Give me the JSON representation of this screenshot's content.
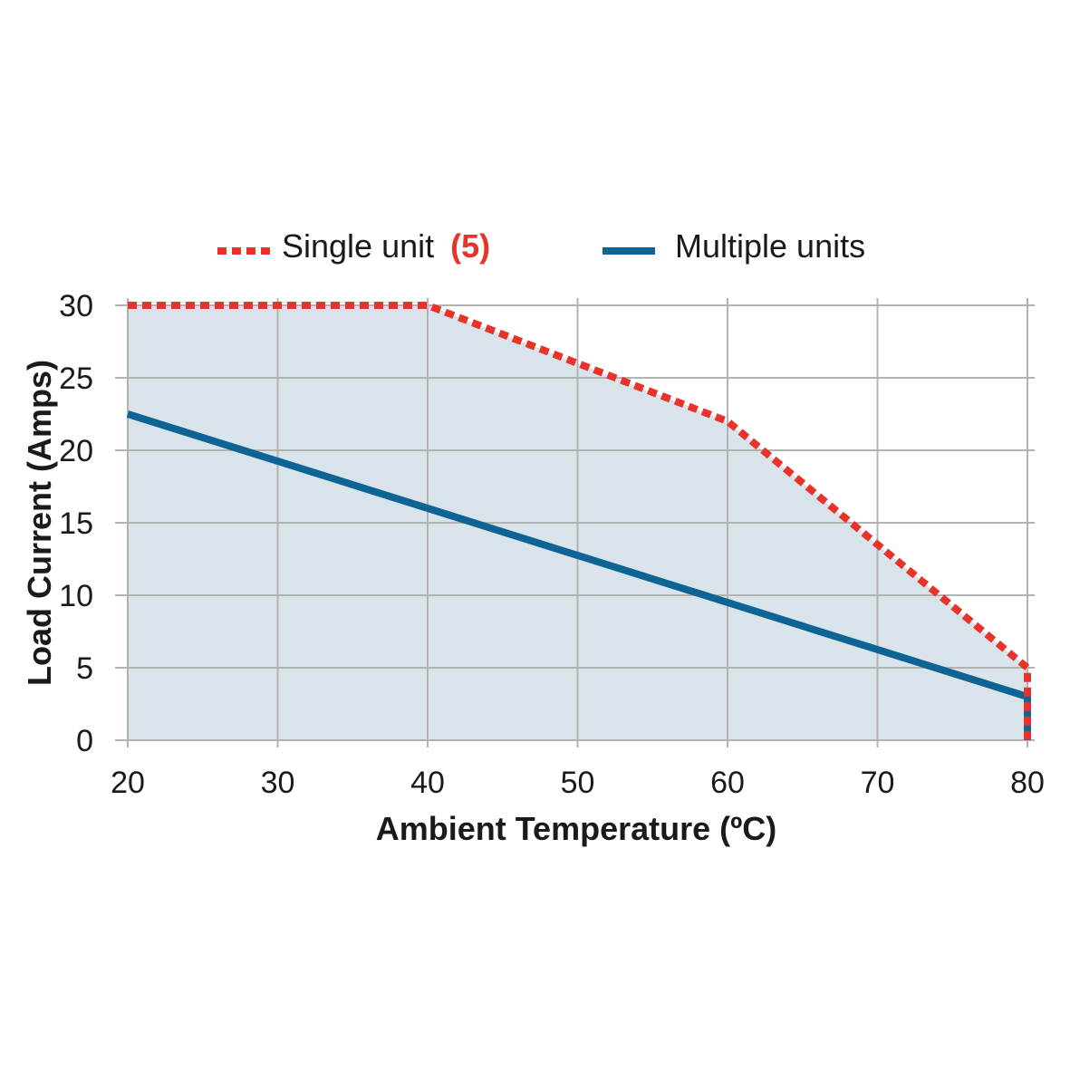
{
  "chart_data": {
    "type": "line",
    "title": "",
    "xlabel": "Ambient Temperature (ºC)",
    "ylabel": "Load Current (Amps)",
    "xlim": [
      20,
      80
    ],
    "ylim": [
      0,
      30
    ],
    "xticks": [
      20,
      30,
      40,
      50,
      60,
      70,
      80
    ],
    "yticks": [
      0,
      5,
      10,
      15,
      20,
      25,
      30
    ],
    "grid": true,
    "legend_position": "top",
    "shaded_region": {
      "under_series": "Single unit",
      "color": "#d9e4ea"
    },
    "series": [
      {
        "name": "Single unit",
        "legend_note": "(5)",
        "style": "dashed",
        "color": "#e8332b",
        "x": [
          20,
          40,
          50,
          60,
          70,
          80,
          80
        ],
        "y": [
          30,
          30,
          26,
          22,
          13.5,
          5,
          0
        ]
      },
      {
        "name": "Multiple units",
        "style": "solid",
        "color": "#0f6496",
        "x": [
          20,
          80,
          80
        ],
        "y": [
          22.5,
          3,
          0
        ]
      }
    ]
  }
}
